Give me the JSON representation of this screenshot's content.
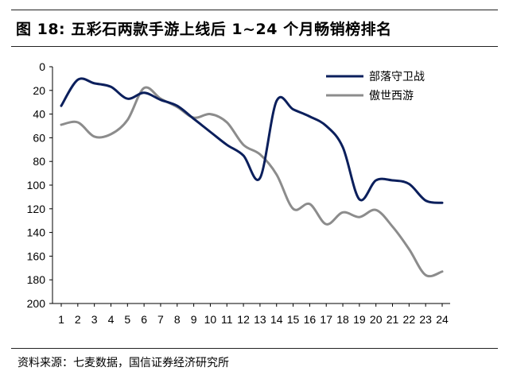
{
  "header": {
    "title": "图 18:  五彩石两款手游上线后 1~24 个月畅销榜排名"
  },
  "footer": {
    "source": "资料来源：七麦数据，国信证券经济研究所"
  },
  "chart_data": {
    "type": "line",
    "title": "",
    "xlabel": "",
    "ylabel": "",
    "x": [
      1,
      2,
      3,
      4,
      5,
      6,
      7,
      8,
      9,
      10,
      11,
      12,
      13,
      14,
      15,
      16,
      17,
      18,
      19,
      20,
      21,
      22,
      23,
      24
    ],
    "ylim": [
      0,
      200
    ],
    "y_inverted": true,
    "y_ticks": [
      0,
      20,
      40,
      60,
      80,
      100,
      120,
      140,
      160,
      180,
      200
    ],
    "grid": false,
    "legend_position": "top-right",
    "series": [
      {
        "name": "部落守卫战",
        "color": "#0b1f5c",
        "values": [
          33,
          11,
          14,
          17,
          27,
          22,
          28,
          33,
          44,
          55,
          66,
          75,
          94,
          29,
          36,
          42,
          50,
          68,
          112,
          96,
          96,
          99,
          113,
          115
        ]
      },
      {
        "name": "傲世西游",
        "color": "#8c8c8c",
        "values": [
          49,
          47,
          59,
          57,
          45,
          18,
          27,
          34,
          43,
          40,
          47,
          66,
          74,
          91,
          120,
          116,
          133,
          123,
          127,
          121,
          135,
          154,
          176,
          173
        ]
      }
    ]
  }
}
